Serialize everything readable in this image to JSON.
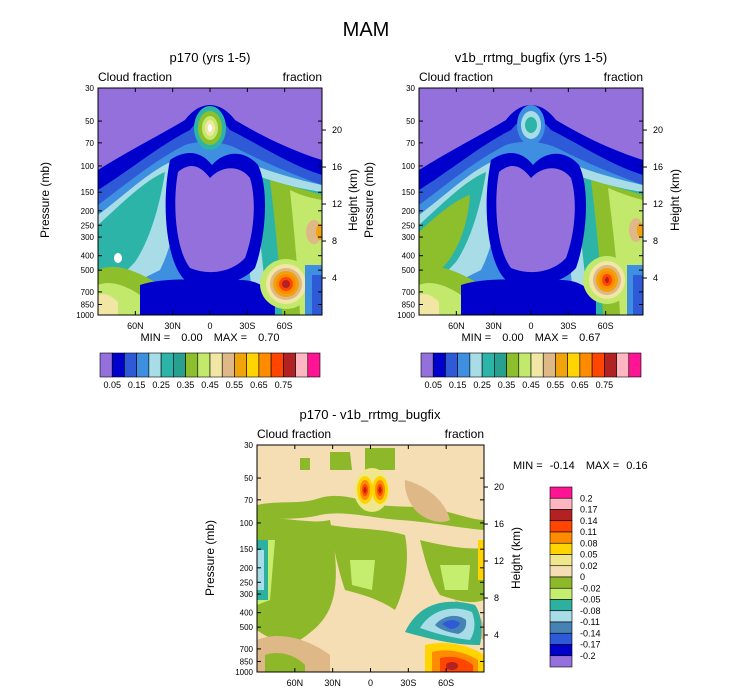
{
  "page_title": "MAM",
  "chart_data": [
    {
      "type": "heatmap",
      "title": "p170 (yrs 1-5)",
      "subtitle_left": "Cloud fraction",
      "subtitle_right": "fraction",
      "xlabel": "",
      "ylabel": "Pressure (mb)",
      "ylabel_right": "Height (km)",
      "x_ticks": [
        "60N",
        "30N",
        "0",
        "30S",
        "60S"
      ],
      "y_ticks": [
        "30",
        "50",
        "70",
        "100",
        "150",
        "200",
        "250",
        "300",
        "400",
        "500",
        "700",
        "850",
        "1000"
      ],
      "right_ticks": [
        "20",
        "16",
        "12",
        "8",
        "4"
      ],
      "min_label": "MIN =",
      "min_value": "0.00",
      "max_label": "MAX =",
      "max_value": "0.70"
    },
    {
      "type": "heatmap",
      "title": "v1b_rrtmg_bugfix (yrs 1-5)",
      "subtitle_left": "Cloud fraction",
      "subtitle_right": "fraction",
      "xlabel": "",
      "ylabel": "Pressure (mb)",
      "ylabel_right": "Height (km)",
      "x_ticks": [
        "60N",
        "30N",
        "0",
        "30S",
        "60S"
      ],
      "y_ticks": [
        "30",
        "50",
        "70",
        "100",
        "150",
        "200",
        "250",
        "300",
        "400",
        "500",
        "700",
        "850",
        "1000"
      ],
      "right_ticks": [
        "20",
        "16",
        "12",
        "8",
        "4"
      ],
      "min_label": "MIN =",
      "min_value": "0.00",
      "max_label": "MAX =",
      "max_value": "0.67"
    },
    {
      "type": "heatmap",
      "title": "p170 - v1b_rrtmg_bugfix",
      "subtitle_left": "Cloud fraction",
      "subtitle_right": "fraction",
      "xlabel": "",
      "ylabel": "Pressure (mb)",
      "ylabel_right": "Height (km)",
      "x_ticks": [
        "60N",
        "30N",
        "0",
        "30S",
        "60S"
      ],
      "y_ticks": [
        "30",
        "50",
        "70",
        "100",
        "150",
        "200",
        "250",
        "300",
        "400",
        "500",
        "700",
        "850",
        "1000"
      ],
      "right_ticks": [
        "20",
        "16",
        "12",
        "8",
        "4"
      ],
      "min_label": "MIN =",
      "min_value": "-0.14",
      "max_label": "MAX =",
      "max_value": "0.16"
    }
  ],
  "colorbar_top": {
    "labels": [
      "0.05",
      "0.15",
      "0.25",
      "0.35",
      "0.45",
      "0.55",
      "0.65",
      "0.75"
    ],
    "colors": [
      "#9370DB",
      "#0000CD",
      "#2E5AD8",
      "#3F8FE0",
      "#A8DDE8",
      "#2DB4A8",
      "#27A08F",
      "#8DBE2B",
      "#C2E96B",
      "#F2E6A5",
      "#DEB887",
      "#F0A30A",
      "#FFD400",
      "#FF8C00",
      "#FF4500",
      "#B22222",
      "#FFB6C1",
      "#FF1493"
    ]
  },
  "colorbar_diff": {
    "labels": [
      "0.2",
      "0.17",
      "0.14",
      "0.11",
      "0.08",
      "0.05",
      "0.02",
      "0",
      "-0.02",
      "-0.05",
      "-0.08",
      "-0.11",
      "-0.14",
      "-0.17",
      "-0.2"
    ],
    "colors": [
      "#FF1493",
      "#FFB6C1",
      "#B22222",
      "#FF4500",
      "#FF8C00",
      "#FFD400",
      "#F0E68C",
      "#F5DEB3",
      "#8DB829",
      "#C6EE6E",
      "#2DB0A0",
      "#A8DDE8",
      "#4682B4",
      "#2E5AD8",
      "#0000CD",
      "#9370DB"
    ]
  }
}
